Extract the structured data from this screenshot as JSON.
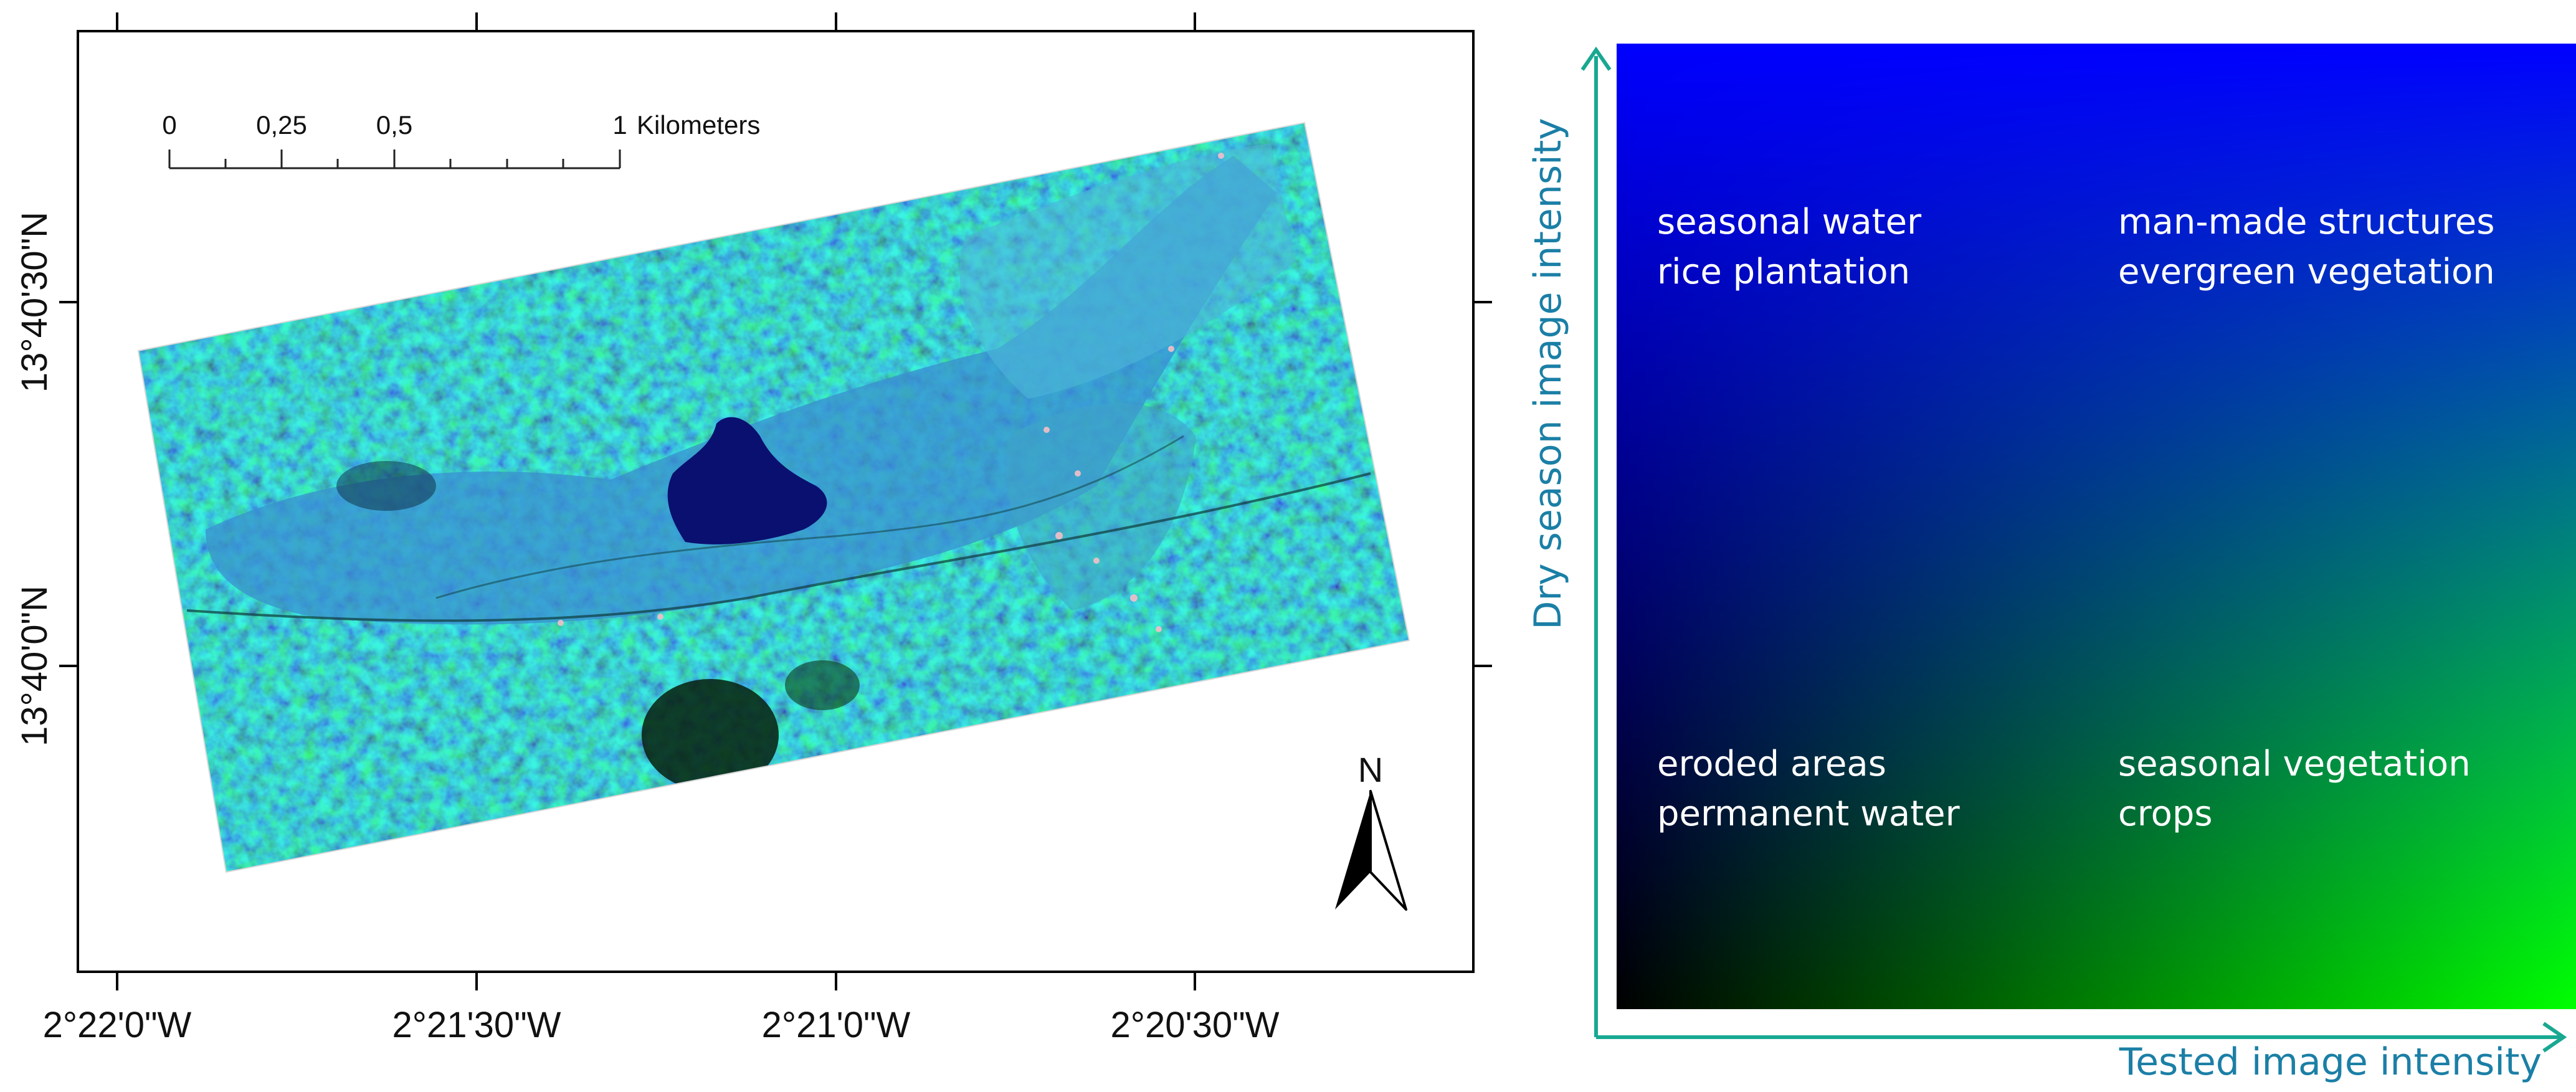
{
  "map": {
    "scalebar": {
      "ticks": [
        "0",
        "0,25",
        "0,5",
        "1"
      ],
      "unit": "Kilometers"
    },
    "north_label": "N",
    "lat_labels": [
      "13°40'30\"N",
      "13°40'0\"N"
    ],
    "lon_labels": [
      "2°22'0\"W",
      "2°21'30\"W",
      "2°21'0\"W",
      "2°20'30\"W"
    ]
  },
  "legend": {
    "y_axis_label": "Dry season image intensity",
    "x_axis_label": "Tested image intensity",
    "top_left": [
      "seasonal water",
      "rice plantation"
    ],
    "top_right": [
      "man-made structures",
      "evergreen vegetation"
    ],
    "bottom_left": [
      "eroded areas",
      "permanent water"
    ],
    "bottom_right": [
      "seasonal vegetation",
      "crops"
    ],
    "colors": {
      "top_left": "#0000ff",
      "top_right": "#00ffff",
      "bottom_left": "#000000",
      "bottom_right": "#00ff00",
      "axis": "#18a892",
      "axis_label": "#1b7fa6"
    }
  }
}
